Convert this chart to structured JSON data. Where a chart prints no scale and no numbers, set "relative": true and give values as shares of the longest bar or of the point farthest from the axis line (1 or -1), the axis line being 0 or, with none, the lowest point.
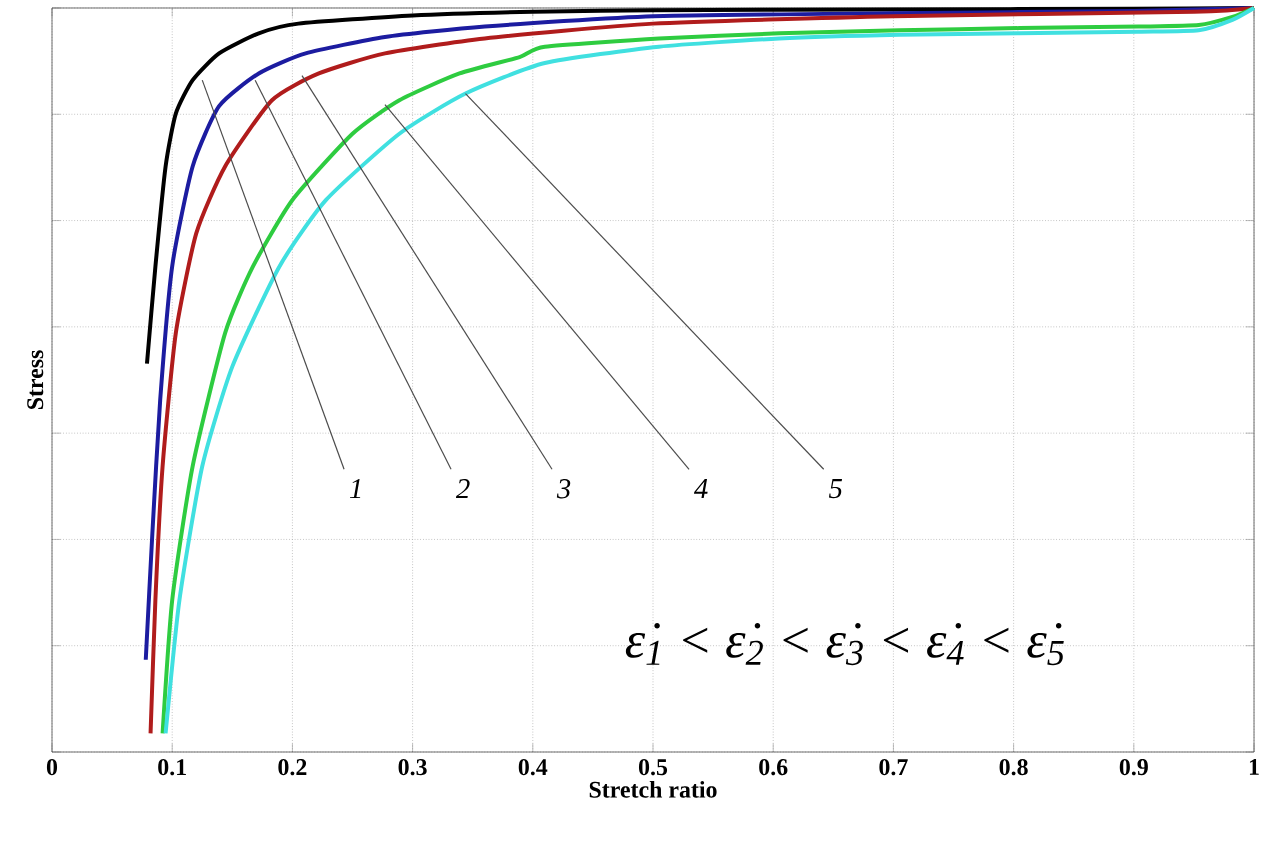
{
  "chart_data": {
    "type": "line",
    "relative": true,
    "xlabel": "Stretch ratio",
    "ylabel": "Stress",
    "xlim": [
      0,
      1
    ],
    "xticks": [
      0,
      0.1,
      0.2,
      0.3,
      0.4,
      0.5,
      0.6,
      0.7,
      0.8,
      0.9,
      1
    ],
    "grid": true,
    "tick_labels": "x",
    "marker": "none",
    "line_style": "solid",
    "series": [
      {
        "color": "#000000",
        "x": [
          0.079,
          0.086,
          0.0945,
          0.103,
          0.117,
          0.139,
          0.172,
          0.205,
          0.3,
          0.4,
          0.5,
          0.7,
          0.9,
          1.0
        ],
        "values": [
          0.522,
          0.652,
          0.787,
          0.858,
          0.903,
          0.939,
          0.966,
          0.979,
          0.99,
          0.995,
          0.997,
          0.998,
          0.999,
          1.0
        ]
      },
      {
        "color": "#1c1ca0",
        "x": [
          0.078,
          0.0835,
          0.09,
          0.1,
          0.117,
          0.139,
          0.172,
          0.211,
          0.277,
          0.36,
          0.5,
          0.7,
          0.9,
          1.0
        ],
        "values": [
          0.124,
          0.294,
          0.473,
          0.653,
          0.787,
          0.868,
          0.912,
          0.939,
          0.961,
          0.975,
          0.989,
          0.993,
          0.996,
          1.0
        ]
      },
      {
        "color": "#b01c1c",
        "x": [
          0.082,
          0.086,
          0.092,
          0.103,
          0.12,
          0.144,
          0.183,
          0.222,
          0.277,
          0.36,
          0.5,
          0.7,
          0.95,
          1.0
        ],
        "values": [
          0.025,
          0.204,
          0.384,
          0.563,
          0.697,
          0.787,
          0.876,
          0.912,
          0.939,
          0.959,
          0.979,
          0.989,
          0.995,
          1.0
        ]
      },
      {
        "color": "#2ecc40",
        "x": [
          0.092,
          0.1,
          0.117,
          0.144,
          0.167,
          0.2,
          0.25,
          0.289,
          0.339,
          0.389,
          0.41,
          0.505,
          0.605,
          0.705,
          0.805,
          0.904,
          0.954,
          0.982,
          1.0
        ],
        "values": [
          0.025,
          0.204,
          0.384,
          0.563,
          0.652,
          0.742,
          0.831,
          0.876,
          0.912,
          0.934,
          0.948,
          0.959,
          0.966,
          0.97,
          0.973,
          0.975,
          0.977,
          0.988,
          1.0
        ]
      },
      {
        "color": "#40e0e0",
        "x": [
          0.0945,
          0.106,
          0.125,
          0.15,
          0.189,
          0.228,
          0.289,
          0.344,
          0.41,
          0.505,
          0.605,
          0.705,
          0.805,
          0.904,
          0.954,
          0.982,
          1.0
        ],
        "values": [
          0.025,
          0.204,
          0.384,
          0.518,
          0.652,
          0.742,
          0.831,
          0.885,
          0.926,
          0.948,
          0.959,
          0.964,
          0.966,
          0.968,
          0.97,
          0.984,
          1.0
        ]
      }
    ],
    "annotations": [
      {
        "text": "1",
        "x": 0.125,
        "y": 0.903
      },
      {
        "text": "2",
        "x": 0.169,
        "y": 0.903
      },
      {
        "text": "3",
        "x": 0.208,
        "y": 0.909
      },
      {
        "text": "4",
        "x": 0.277,
        "y": 0.87
      },
      {
        "text": "5",
        "x": 0.344,
        "y": 0.885
      },
      "ε̇$_{1}$ < ε̇$_{2}$ < ε̇$_{3}$ < ε̇$_{4}$ < ε̇$_{5}$"
    ]
  }
}
